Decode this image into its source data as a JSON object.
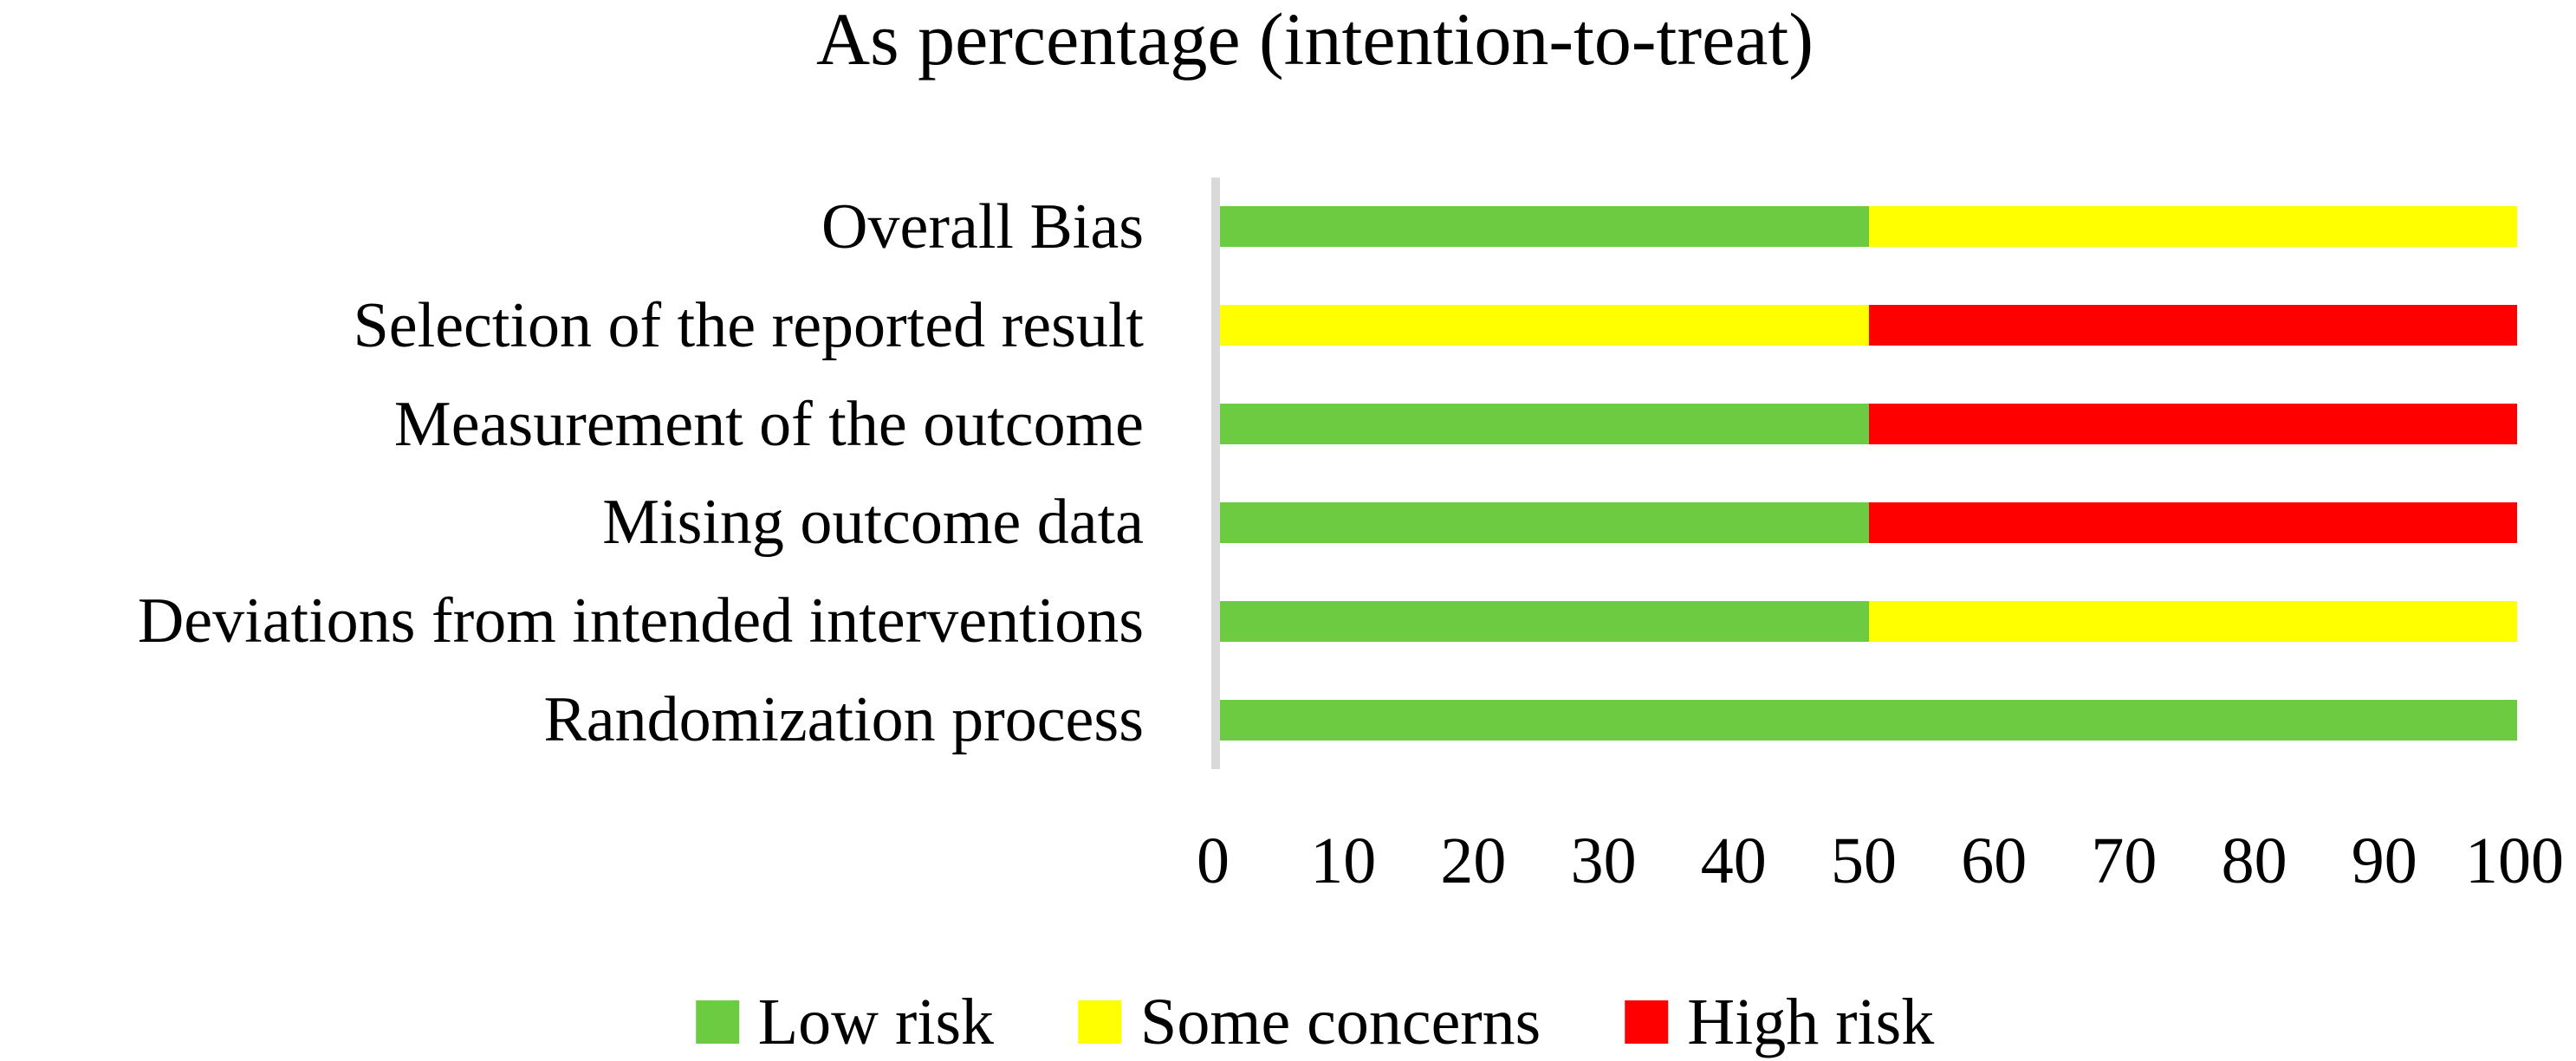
{
  "title": "As percentage (intention-to-treat)",
  "colors": {
    "low_risk": "#6CCB41",
    "some_concerns": "#FFFF00",
    "high_risk": "#FF0000",
    "axis_line": "#D9D9D9",
    "text": "#000000",
    "background": "#FFFFFF"
  },
  "legend": {
    "position": "bottom",
    "items": [
      {
        "label": "Low risk",
        "color": "#6CCB41"
      },
      {
        "label": "Some concerns",
        "color": "#FFFF00"
      },
      {
        "label": "High risk",
        "color": "#FF0000"
      }
    ]
  },
  "chart_data": {
    "type": "bar",
    "orientation": "horizontal",
    "stacked": true,
    "title": "As percentage (intention-to-treat)",
    "categories_top_to_bottom": [
      "Overall Bias",
      "Selection of the reported result",
      "Measurement of the outcome",
      "Mising outcome data",
      "Deviations from intended interventions",
      "Randomization process"
    ],
    "series": [
      {
        "name": "Low risk",
        "color": "#6CCB41",
        "values": [
          50,
          0,
          50,
          50,
          50,
          100
        ]
      },
      {
        "name": "Some concerns",
        "color": "#FFFF00",
        "values": [
          50,
          50,
          0,
          0,
          50,
          0
        ]
      },
      {
        "name": "High risk",
        "color": "#FF0000",
        "values": [
          0,
          50,
          50,
          50,
          0,
          0
        ]
      }
    ],
    "xlabel": "",
    "ylabel": "",
    "xlim": [
      0,
      100
    ],
    "x_ticks": [
      0,
      10,
      20,
      30,
      40,
      50,
      60,
      70,
      80,
      90,
      100
    ],
    "grid": false,
    "legend_position": "bottom"
  }
}
